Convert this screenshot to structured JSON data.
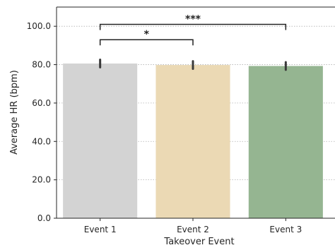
{
  "chart_data": {
    "type": "bar",
    "title": "",
    "xlabel": "Takeover Event",
    "ylabel": "Average HR (bpm)",
    "categories": [
      "Event 1",
      "Event 2",
      "Event 3"
    ],
    "values": [
      80.6,
      79.8,
      79.3
    ],
    "error": [
      2.0,
      2.0,
      2.0
    ],
    "bar_colors": [
      "#d3d3d3",
      "#ebd9b4",
      "#95b591"
    ],
    "ylim": [
      0,
      110
    ],
    "yticks": [
      0,
      20,
      40,
      60,
      80,
      100
    ],
    "ytick_labels": [
      "0.0",
      "20.0",
      "40.0",
      "60.0",
      "80.0",
      "100.0"
    ],
    "grid": "horizontal dotted",
    "significance": [
      {
        "from": 0,
        "to": 1,
        "level": 93,
        "label": "*"
      },
      {
        "from": 0,
        "to": 2,
        "level": 101,
        "label": "***"
      }
    ]
  }
}
